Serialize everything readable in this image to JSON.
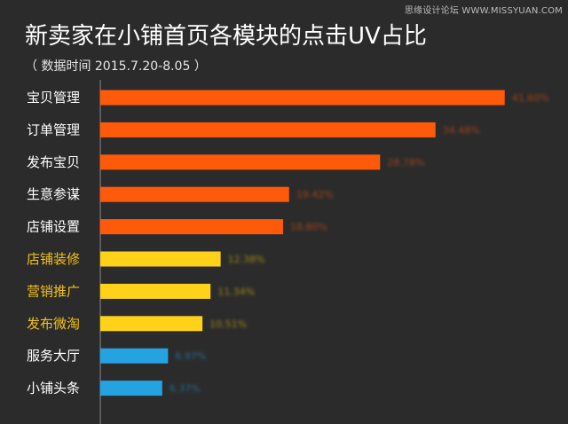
{
  "watermark": "思缘设计论坛 WWW.MISSYUAN.COM",
  "colors": {
    "background": "#2b2b2b",
    "orange": "#ff5a0a",
    "yellow": "#ffd21a",
    "blue": "#25a2e0",
    "label_white": "#ffffff",
    "label_yellow": "#f3c21b",
    "axis": "#8a8a8a"
  },
  "chart_data": {
    "type": "bar",
    "orientation": "horizontal",
    "title": "新卖家在小铺首页各模块的点击UV占比",
    "subtitle": "（ 数据时间 2015.7.20-8.05 ）",
    "xlabel": "",
    "ylabel": "",
    "unit": "%",
    "xlim": [
      0,
      41.9
    ],
    "categories": [
      "宝贝管理",
      "订单管理",
      "发布宝贝",
      "生意参谋",
      "店铺设置",
      "店铺装修",
      "营销推广",
      "发布微淘",
      "服务大厅",
      "小铺头条"
    ],
    "values": [
      41.6,
      34.48,
      28.78,
      19.42,
      18.8,
      12.38,
      11.34,
      10.51,
      6.97,
      6.37
    ],
    "value_labels": [
      "41.60%",
      "34.48%",
      "28.78%",
      "19.42%",
      "18.80%",
      "12.38%",
      "11.34%",
      "10.51%",
      "6.97%",
      "6.37%"
    ],
    "groups": [
      "orange",
      "orange",
      "orange",
      "orange",
      "orange",
      "yellow",
      "yellow",
      "yellow",
      "blue",
      "blue"
    ],
    "grid": false,
    "legend": "none"
  }
}
